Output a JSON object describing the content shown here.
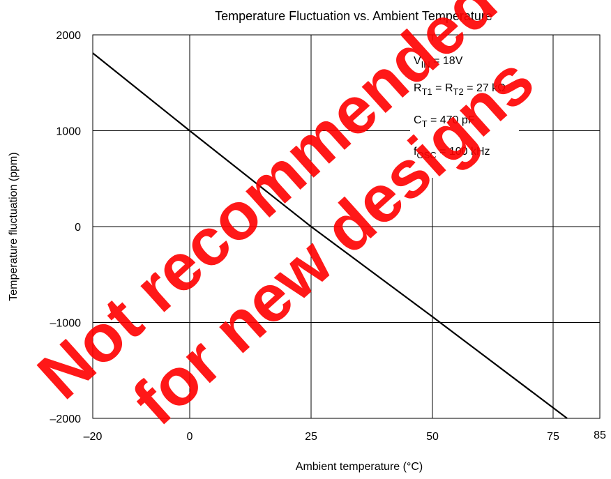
{
  "chart_data": {
    "type": "line",
    "title": "Temperature Fluctuation vs. Ambient Temperature",
    "xlabel": "Ambient temperature (°C)",
    "ylabel": "Temperature fluctuation (ppm)",
    "xlim": [
      -20,
      85
    ],
    "ylim": [
      -2000,
      2000
    ],
    "x_ticks": [
      {
        "value": -20,
        "label": "–20"
      },
      {
        "value": 0,
        "label": "0"
      },
      {
        "value": 25,
        "label": "25"
      },
      {
        "value": 50,
        "label": "50"
      },
      {
        "value": 75,
        "label": "75"
      },
      {
        "value": 85,
        "label": "85"
      }
    ],
    "y_ticks": [
      {
        "value": 2000,
        "label": "2000"
      },
      {
        "value": 1000,
        "label": "1000"
      },
      {
        "value": 0,
        "label": "0"
      },
      {
        "value": -1000,
        "label": "–1000"
      },
      {
        "value": -2000,
        "label": "–2000"
      }
    ],
    "grid": true,
    "series": [
      {
        "x": [
          -20,
          0,
          25,
          50,
          78
        ],
        "y": [
          1810,
          1000,
          0,
          -940,
          -2000
        ]
      }
    ],
    "conditions": [
      {
        "main": "V",
        "sub": "IN",
        "rest": " = 18V"
      },
      {
        "main": "R",
        "sub": "T1",
        "mid": " = R",
        "sub2": "T2",
        "rest": " =  27 kΩ"
      },
      {
        "main": "C",
        "sub": "T",
        "rest": " = 470 pF"
      },
      {
        "main": "f",
        "sub": "OSC",
        "rest": " = 100 kHz"
      }
    ],
    "watermark": [
      "Not recommended",
      "for new designs"
    ]
  },
  "colors": {
    "line": "#000000",
    "grid": "#000000",
    "watermark": "#ff0000"
  }
}
